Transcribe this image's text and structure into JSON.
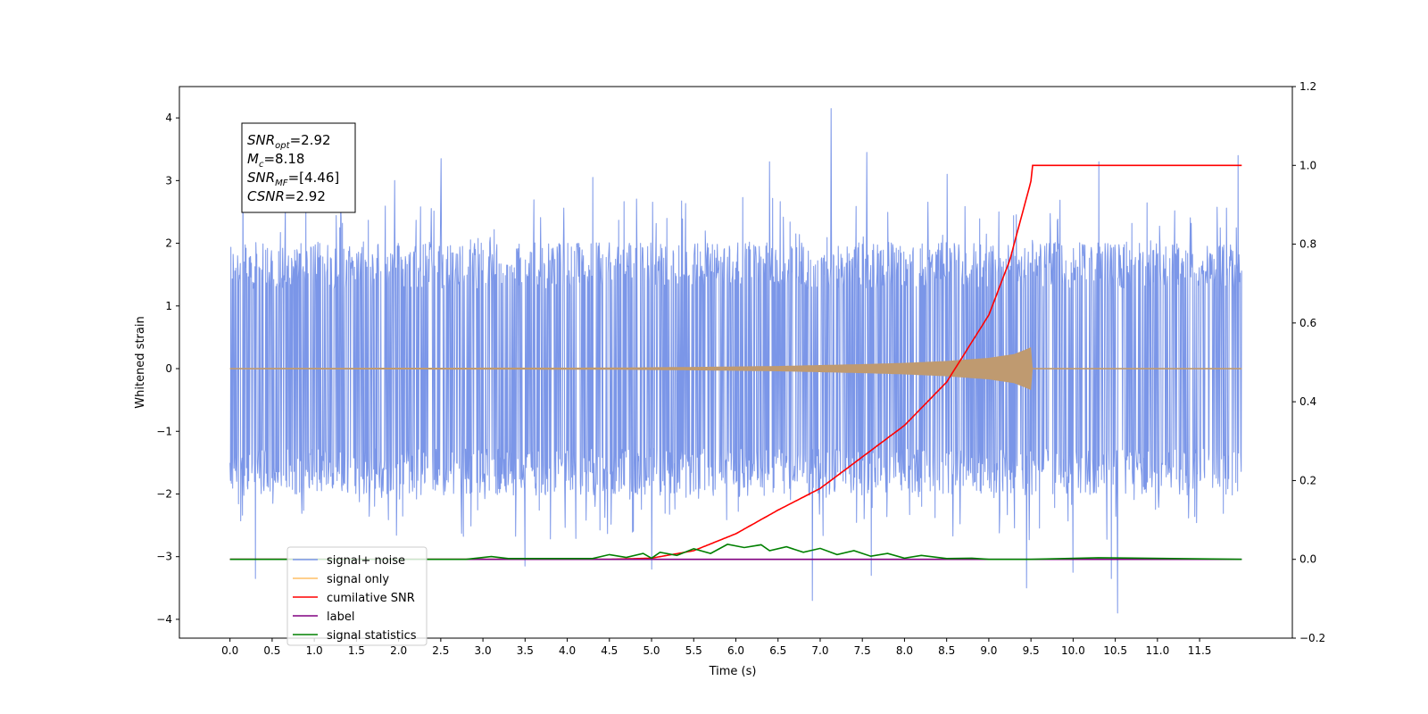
{
  "chart_data": {
    "type": "line",
    "title": "",
    "xlabel": "Time (s)",
    "ylabel": "Whitened strain",
    "xlim": [
      -0.6,
      12.6
    ],
    "ylim": [
      -4.3,
      4.5
    ],
    "y2lim": [
      -0.2,
      1.2
    ],
    "xticks": [
      0.0,
      0.5,
      1.0,
      1.5,
      2.0,
      2.5,
      3.0,
      3.5,
      4.0,
      4.5,
      5.0,
      5.5,
      6.0,
      6.5,
      7.0,
      7.5,
      8.0,
      8.5,
      9.0,
      9.5,
      10.0,
      10.5,
      11.0,
      11.5
    ],
    "xtick_labels": [
      "0.0",
      "0.5",
      "1.0",
      "1.5",
      "2.0",
      "2.5",
      "3.0",
      "3.5",
      "4.0",
      "4.5",
      "5.0",
      "5.5",
      "6.0",
      "6.5",
      "7.0",
      "7.5",
      "8.0",
      "8.5",
      "9.0",
      "9.5",
      "10.0",
      "10.5",
      "11.0",
      "11.5"
    ],
    "yticks": [
      4,
      3,
      2,
      1,
      0,
      -1,
      -2,
      -3,
      -4
    ],
    "ytick_labels": [
      "4",
      "3",
      "2",
      "1",
      "0",
      "−1",
      "−2",
      "−3",
      "−4"
    ],
    "y2ticks": [
      1.2,
      1.0,
      0.8,
      0.6,
      0.4,
      0.2,
      0.0,
      -0.2
    ],
    "y2tick_labels": [
      "1.2",
      "1.0",
      "0.8",
      "0.6",
      "0.4",
      "0.2",
      "0.0",
      "−0.2"
    ],
    "grid": false,
    "legend_position": "lower-left",
    "annotation": {
      "lines": [
        {
          "var": "SNR",
          "sub": "opt",
          "value": "=2.92"
        },
        {
          "var": "M",
          "sub": "c",
          "value": "=8.18"
        },
        {
          "var": "SNR",
          "sub": "MF",
          "value": "=[4.46]"
        },
        {
          "var": "CSNR",
          "sub": "",
          "value": "=2.92"
        }
      ]
    },
    "series": [
      {
        "name": "signal+ noise",
        "axis": "left",
        "color": "#7b96e8",
        "x_range": [
          0.0,
          12.0
        ],
        "band_envelope": {
          "x": [
            0,
            1,
            2,
            3,
            4,
            5,
            6,
            7,
            8,
            9,
            10,
            11,
            12
          ],
          "typical_abs": [
            1.5,
            1.5,
            1.5,
            1.5,
            1.5,
            1.5,
            1.5,
            1.5,
            1.5,
            1.5,
            1.5,
            1.5,
            1.5
          ]
        },
        "peaks": [
          {
            "x": 0.15,
            "y": 3.9
          },
          {
            "x": 0.3,
            "y": -3.35
          },
          {
            "x": 1.95,
            "y": 3.0
          },
          {
            "x": 2.5,
            "y": 3.35
          },
          {
            "x": 3.5,
            "y": -3.15
          },
          {
            "x": 4.3,
            "y": 3.05
          },
          {
            "x": 5.0,
            "y": -3.2
          },
          {
            "x": 6.4,
            "y": 3.3
          },
          {
            "x": 6.9,
            "y": -3.7
          },
          {
            "x": 7.13,
            "y": 4.15
          },
          {
            "x": 7.55,
            "y": 3.45
          },
          {
            "x": 7.6,
            "y": -3.3
          },
          {
            "x": 8.5,
            "y": 3.1
          },
          {
            "x": 9.45,
            "y": -3.5
          },
          {
            "x": 10.0,
            "y": -3.25
          },
          {
            "x": 10.3,
            "y": 3.3
          },
          {
            "x": 10.45,
            "y": -3.35
          },
          {
            "x": 10.53,
            "y": -3.9
          },
          {
            "x": 11.95,
            "y": 3.4
          }
        ]
      },
      {
        "name": "signal only",
        "axis": "left",
        "color": "#ffbf66",
        "envelope": {
          "x": [
            0.0,
            4.5,
            5.5,
            6.5,
            7.5,
            8.0,
            8.5,
            9.0,
            9.3,
            9.45,
            9.5,
            9.52,
            12.0
          ],
          "amp": [
            0.0,
            0.005,
            0.015,
            0.03,
            0.06,
            0.08,
            0.11,
            0.16,
            0.22,
            0.3,
            0.33,
            0.0,
            0.0
          ]
        }
      },
      {
        "name": "cumilative SNR",
        "axis": "right",
        "color": "#ff0000",
        "x": [
          0.0,
          4.5,
          5.0,
          5.5,
          6.0,
          6.5,
          7.0,
          7.5,
          8.0,
          8.5,
          9.0,
          9.25,
          9.4,
          9.5,
          9.52,
          12.0
        ],
        "values": [
          0.0,
          0.0,
          0.003,
          0.022,
          0.065,
          0.125,
          0.18,
          0.26,
          0.34,
          0.45,
          0.62,
          0.76,
          0.88,
          0.96,
          1.0,
          1.0
        ]
      },
      {
        "name": "label",
        "axis": "right",
        "color": "#800080",
        "x": [
          0.0,
          12.0
        ],
        "values": [
          0.0,
          0.0
        ]
      },
      {
        "name": "signal statistics",
        "axis": "right",
        "color": "#008000",
        "x": [
          0.0,
          2.8,
          3.1,
          3.3,
          4.3,
          4.5,
          4.7,
          4.9,
          5.0,
          5.1,
          5.3,
          5.5,
          5.7,
          5.9,
          6.1,
          6.3,
          6.4,
          6.6,
          6.8,
          7.0,
          7.2,
          7.4,
          7.6,
          7.8,
          8.0,
          8.2,
          8.5,
          8.8,
          9.0,
          9.5,
          10.3,
          12.0
        ],
        "values": [
          0.0,
          0.0,
          0.007,
          0.002,
          0.002,
          0.012,
          0.005,
          0.015,
          0.003,
          0.018,
          0.01,
          0.027,
          0.015,
          0.038,
          0.03,
          0.037,
          0.022,
          0.032,
          0.018,
          0.028,
          0.012,
          0.022,
          0.008,
          0.015,
          0.003,
          0.01,
          0.002,
          0.003,
          0.0,
          0.0,
          0.004,
          0.0
        ]
      }
    ]
  }
}
